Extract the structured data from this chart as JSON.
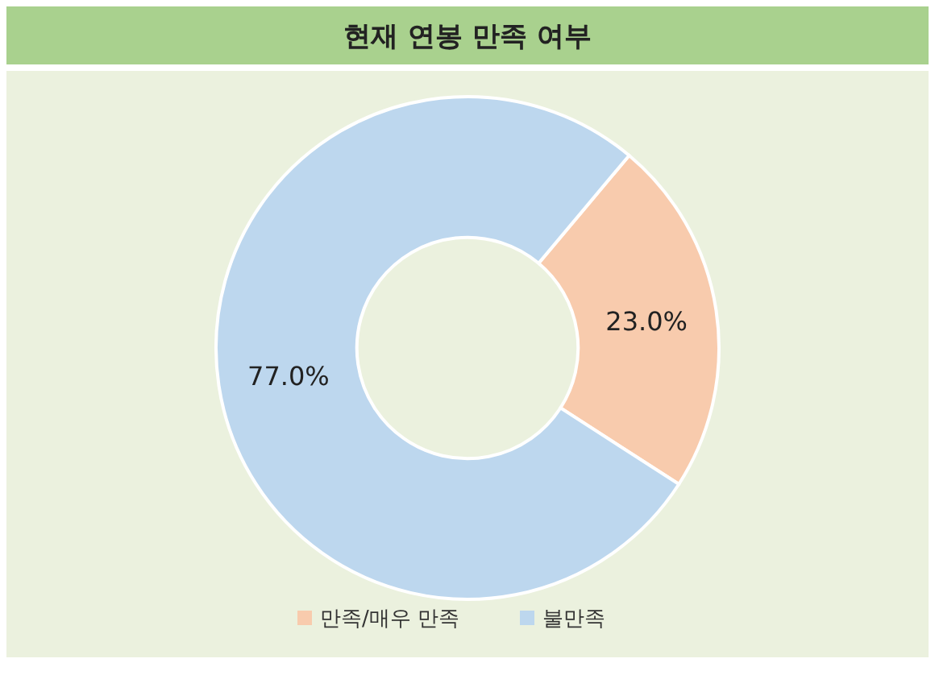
{
  "chart_data": {
    "type": "donut",
    "title": "현재 연봉 만족 여부",
    "categories": [
      "만족/매우 만족",
      "불만족"
    ],
    "values": [
      23.0,
      77.0
    ],
    "colors": [
      "#f8cbad",
      "#bdd7ee"
    ],
    "value_labels": [
      "23.0%",
      "77.0%"
    ],
    "legend": "bottom"
  }
}
